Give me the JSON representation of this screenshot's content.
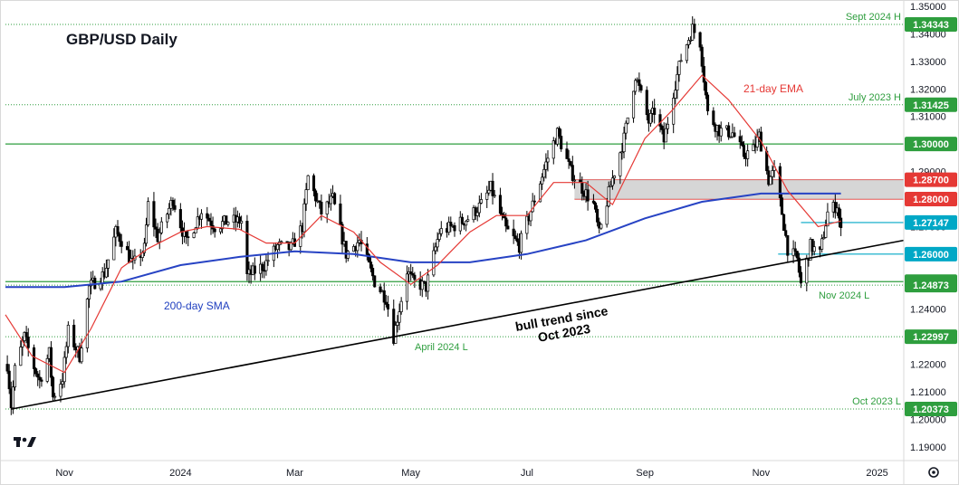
{
  "chart_data": {
    "type": "candlestick",
    "title": "GBP/USD Daily",
    "y_range": [
      1.185,
      1.35
    ],
    "y_ticks": [
      1.19,
      1.2,
      1.21,
      1.22,
      1.23,
      1.24,
      1.25,
      1.26,
      1.27,
      1.28,
      1.29,
      1.3,
      1.31,
      1.32,
      1.33,
      1.34,
      1.35
    ],
    "y_tick_labels": [
      "1.19000",
      "1.20000",
      "1.21000",
      "1.22000",
      "1.23000",
      "1.24000",
      "1.25000",
      "1.26000",
      "1.27000",
      "1.28000",
      "1.29000",
      "1.30000",
      "1.31000",
      "1.32000",
      "1.33000",
      "1.34000",
      "1.35000"
    ],
    "x_range": [
      "2023-10-01",
      "2025-01-15"
    ],
    "x_ticks": [
      {
        "date": "2023-11-01",
        "label": "Nov"
      },
      {
        "date": "2024-01-01",
        "label": "2024"
      },
      {
        "date": "2024-03-01",
        "label": "Mar"
      },
      {
        "date": "2024-05-01",
        "label": "May"
      },
      {
        "date": "2024-07-01",
        "label": "Jul"
      },
      {
        "date": "2024-09-01",
        "label": "Sep"
      },
      {
        "date": "2024-11-01",
        "label": "Nov"
      },
      {
        "date": "2025-01-01",
        "label": "2025"
      }
    ],
    "price_path": [
      [
        "2023-10-02",
        1.22
      ],
      [
        "2023-10-04",
        1.205
      ],
      [
        "2023-10-06",
        1.218
      ],
      [
        "2023-10-11",
        1.23
      ],
      [
        "2023-10-16",
        1.219
      ],
      [
        "2023-10-19",
        1.214
      ],
      [
        "2023-10-24",
        1.224
      ],
      [
        "2023-10-26",
        1.208
      ],
      [
        "2023-10-31",
        1.215
      ],
      [
        "2023-11-03",
        1.232
      ],
      [
        "2023-11-09",
        1.223
      ],
      [
        "2023-11-14",
        1.248
      ],
      [
        "2023-11-22",
        1.253
      ],
      [
        "2023-11-28",
        1.268
      ],
      [
        "2023-12-01",
        1.265
      ],
      [
        "2023-12-07",
        1.256
      ],
      [
        "2023-12-13",
        1.262
      ],
      [
        "2023-12-15",
        1.278
      ],
      [
        "2023-12-20",
        1.266
      ],
      [
        "2023-12-28",
        1.28
      ],
      [
        "2024-01-04",
        1.264
      ],
      [
        "2024-01-12",
        1.276
      ],
      [
        "2024-01-19",
        1.27
      ],
      [
        "2024-01-26",
        1.272
      ],
      [
        "2024-02-02",
        1.272
      ],
      [
        "2024-02-05",
        1.252
      ],
      [
        "2024-02-14",
        1.256
      ],
      [
        "2024-02-21",
        1.263
      ],
      [
        "2024-02-28",
        1.262
      ],
      [
        "2024-03-05",
        1.27
      ],
      [
        "2024-03-08",
        1.288
      ],
      [
        "2024-03-15",
        1.275
      ],
      [
        "2024-03-21",
        1.28
      ],
      [
        "2024-03-28",
        1.26
      ],
      [
        "2024-04-04",
        1.265
      ],
      [
        "2024-04-12",
        1.25
      ],
      [
        "2024-04-18",
        1.244
      ],
      [
        "2024-04-22",
        1.23
      ],
      [
        "2024-04-29",
        1.254
      ],
      [
        "2024-05-02",
        1.25
      ],
      [
        "2024-05-09",
        1.248
      ],
      [
        "2024-05-16",
        1.268
      ],
      [
        "2024-05-23",
        1.27
      ],
      [
        "2024-05-31",
        1.273
      ],
      [
        "2024-06-07",
        1.278
      ],
      [
        "2024-06-12",
        1.284
      ],
      [
        "2024-06-20",
        1.269
      ],
      [
        "2024-06-27",
        1.263
      ],
      [
        "2024-07-05",
        1.28
      ],
      [
        "2024-07-12",
        1.295
      ],
      [
        "2024-07-17",
        1.304
      ],
      [
        "2024-07-24",
        1.29
      ],
      [
        "2024-07-30",
        1.284
      ],
      [
        "2024-08-05",
        1.278
      ],
      [
        "2024-08-08",
        1.267
      ],
      [
        "2024-08-14",
        1.285
      ],
      [
        "2024-08-21",
        1.302
      ],
      [
        "2024-08-27",
        1.325
      ],
      [
        "2024-09-03",
        1.308
      ],
      [
        "2024-09-06",
        1.312
      ],
      [
        "2024-09-11",
        1.301
      ],
      [
        "2024-09-16",
        1.319
      ],
      [
        "2024-09-20",
        1.331
      ],
      [
        "2024-09-26",
        1.342
      ],
      [
        "2024-09-30",
        1.337
      ],
      [
        "2024-10-04",
        1.311
      ],
      [
        "2024-10-10",
        1.305
      ],
      [
        "2024-10-17",
        1.304
      ],
      [
        "2024-10-23",
        1.296
      ],
      [
        "2024-10-28",
        1.298
      ],
      [
        "2024-10-31",
        1.303
      ],
      [
        "2024-11-05",
        1.287
      ],
      [
        "2024-11-08",
        1.29
      ],
      [
        "2024-11-12",
        1.275
      ],
      [
        "2024-11-15",
        1.262
      ],
      [
        "2024-11-20",
        1.258
      ],
      [
        "2024-11-22",
        1.249
      ],
      [
        "2024-11-27",
        1.263
      ],
      [
        "2024-12-02",
        1.26
      ],
      [
        "2024-12-06",
        1.275
      ],
      [
        "2024-12-11",
        1.278
      ],
      [
        "2024-12-13",
        1.268
      ]
    ],
    "ema_21": [
      [
        "2023-10-01",
        1.238
      ],
      [
        "2023-10-15",
        1.223
      ],
      [
        "2023-11-01",
        1.217
      ],
      [
        "2023-11-15",
        1.233
      ],
      [
        "2023-12-01",
        1.255
      ],
      [
        "2023-12-15",
        1.262
      ],
      [
        "2024-01-01",
        1.268
      ],
      [
        "2024-01-15",
        1.27
      ],
      [
        "2024-02-01",
        1.269
      ],
      [
        "2024-02-15",
        1.264
      ],
      [
        "2024-03-01",
        1.264
      ],
      [
        "2024-03-15",
        1.274
      ],
      [
        "2024-04-01",
        1.268
      ],
      [
        "2024-04-15",
        1.257
      ],
      [
        "2024-05-01",
        1.249
      ],
      [
        "2024-05-15",
        1.256
      ],
      [
        "2024-06-01",
        1.268
      ],
      [
        "2024-06-15",
        1.274
      ],
      [
        "2024-07-01",
        1.274
      ],
      [
        "2024-07-15",
        1.286
      ],
      [
        "2024-08-01",
        1.286
      ],
      [
        "2024-08-15",
        1.278
      ],
      [
        "2024-09-01",
        1.302
      ],
      [
        "2024-09-15",
        1.312
      ],
      [
        "2024-10-01",
        1.325
      ],
      [
        "2024-10-15",
        1.316
      ],
      [
        "2024-11-01",
        1.301
      ],
      [
        "2024-11-15",
        1.283
      ],
      [
        "2024-12-01",
        1.27
      ],
      [
        "2024-12-13",
        1.272
      ]
    ],
    "sma_200": [
      [
        "2023-10-01",
        1.248
      ],
      [
        "2023-11-01",
        1.248
      ],
      [
        "2023-12-01",
        1.25
      ],
      [
        "2024-01-01",
        1.256
      ],
      [
        "2024-02-01",
        1.259
      ],
      [
        "2024-03-01",
        1.261
      ],
      [
        "2024-04-01",
        1.26
      ],
      [
        "2024-05-01",
        1.257
      ],
      [
        "2024-06-01",
        1.257
      ],
      [
        "2024-07-01",
        1.26
      ],
      [
        "2024-08-01",
        1.265
      ],
      [
        "2024-09-01",
        1.273
      ],
      [
        "2024-10-01",
        1.279
      ],
      [
        "2024-11-01",
        1.282
      ],
      [
        "2024-12-13",
        1.282
      ]
    ],
    "trendline": {
      "label": "bull trend since\nOct 2023",
      "from": [
        "2023-10-04",
        1.2037
      ],
      "to": [
        "2025-01-15",
        1.265
      ]
    },
    "resistance_zone": {
      "from_date": "2024-07-26",
      "lower": 1.28,
      "upper": 1.287
    },
    "horizontal_levels": [
      {
        "value": 1.34343,
        "label": "1.34343",
        "annotation": "Sept 2024 H",
        "style": "dotted-green",
        "color": "#2e9e3e"
      },
      {
        "value": 1.31425,
        "label": "1.31425",
        "annotation": "July 2023 H",
        "style": "dotted-green",
        "color": "#2e9e3e"
      },
      {
        "value": 1.3,
        "label": "1.30000",
        "annotation": "",
        "style": "solid-green",
        "color": "#2e9e3e"
      },
      {
        "value": 1.287,
        "label": "1.28700",
        "annotation": "",
        "style": "red",
        "color": "#e53935"
      },
      {
        "value": 1.28,
        "label": "1.28000",
        "annotation": "",
        "style": "red",
        "color": "#e53935"
      },
      {
        "value": 1.27147,
        "label": "1.27147",
        "annotation": "",
        "style": "cyan",
        "color": "#00a8c6"
      },
      {
        "value": 1.26,
        "label": "1.26000",
        "annotation": "",
        "style": "cyan",
        "color": "#00a8c6"
      },
      {
        "value": 1.25,
        "label": "1.25000",
        "annotation": "",
        "style": "solid-green",
        "color": "#2e9e3e"
      },
      {
        "value": 1.24873,
        "label": "1.24873",
        "annotation": "Nov 2024 L",
        "style": "dotted-green",
        "color": "#2e9e3e"
      },
      {
        "value": 1.22997,
        "label": "1.22997",
        "annotation": "April 2024 L",
        "style": "dotted-green",
        "color": "#2e9e3e"
      },
      {
        "value": 1.20373,
        "label": "1.20373",
        "annotation": "Oct 2023 L",
        "style": "dotted-green",
        "color": "#2e9e3e"
      }
    ],
    "annotations": {
      "ema_label": "21-day EMA",
      "sma_label": "200-day SMA"
    },
    "colors": {
      "up": "#ffffff",
      "down": "#000000",
      "ema": "#e53935",
      "sma": "#2743c4",
      "green": "#2e9e3e",
      "cyan": "#00a8c6",
      "red": "#e53935",
      "zone": "#c8c8c8"
    }
  },
  "icons": {
    "logo": "tradingview-logo",
    "settings": "gear-icon"
  }
}
